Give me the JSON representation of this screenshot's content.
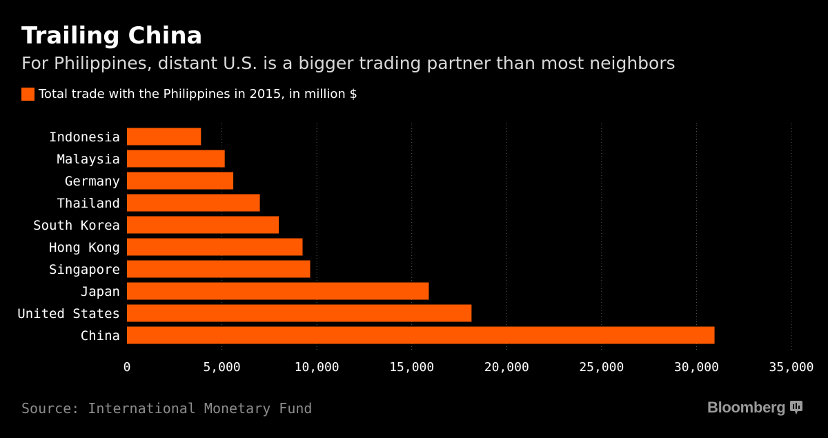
{
  "chart_data": {
    "type": "bar",
    "orientation": "horizontal",
    "title": "Trailing China",
    "subtitle": "For Philippines, distant U.S. is a bigger trading partner than most neighbors",
    "categories": [
      "Indonesia",
      "Malaysia",
      "Germany",
      "Thailand",
      "South Korea",
      "Hong Kong",
      "Singapore",
      "Japan",
      "United States",
      "China"
    ],
    "series": [
      {
        "name": "Total trade with the Philippines in 2015, in million $",
        "values": [
          3900,
          5150,
          5600,
          7000,
          8000,
          9250,
          9650,
          15900,
          18150,
          30950
        ],
        "color": "#ff5a00"
      }
    ],
    "xlim": [
      0,
      35000
    ],
    "xticks": [
      0,
      5000,
      10000,
      15000,
      20000,
      25000,
      30000,
      35000
    ],
    "xtick_labels": [
      "0",
      "5,000",
      "10,000",
      "15,000",
      "20,000",
      "25,000",
      "30,000",
      "35,000"
    ],
    "xlabel": "",
    "ylabel": "",
    "grid": "vertical dotted",
    "legend_position": "top-left"
  },
  "footer": {
    "source": "Source: International Monetary Fund",
    "brand": "Bloomberg",
    "brand_icon": "bloomberg-terminal-icon"
  },
  "colors": {
    "background": "#000000",
    "bar": "#ff5a00",
    "grid": "#5a5a5a",
    "text": "#ffffff",
    "muted": "#8c8c8c"
  }
}
